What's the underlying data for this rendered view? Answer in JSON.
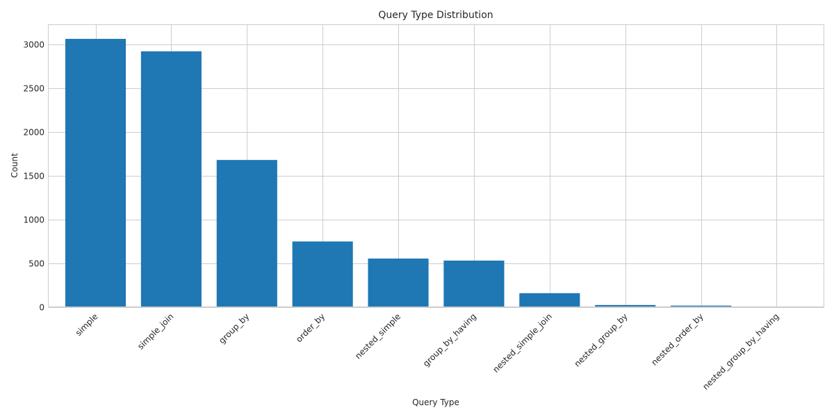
{
  "chart_data": {
    "type": "bar",
    "title": "Query Type Distribution",
    "xlabel": "Query Type",
    "ylabel": "Count",
    "categories": [
      "simple",
      "simple_join",
      "group_by",
      "order_by",
      "nested_simple",
      "group_by_having",
      "nested_simple_join",
      "nested_group_by",
      "nested_order_by",
      "nested_group_by_having"
    ],
    "values": [
      3062,
      2920,
      1680,
      750,
      555,
      532,
      160,
      25,
      18,
      5
    ],
    "ylim": [
      0,
      3220
    ],
    "yticks": [
      0,
      500,
      1000,
      1500,
      2000,
      2500,
      3000
    ],
    "grid": true,
    "bar_color": "#1f77b4"
  }
}
